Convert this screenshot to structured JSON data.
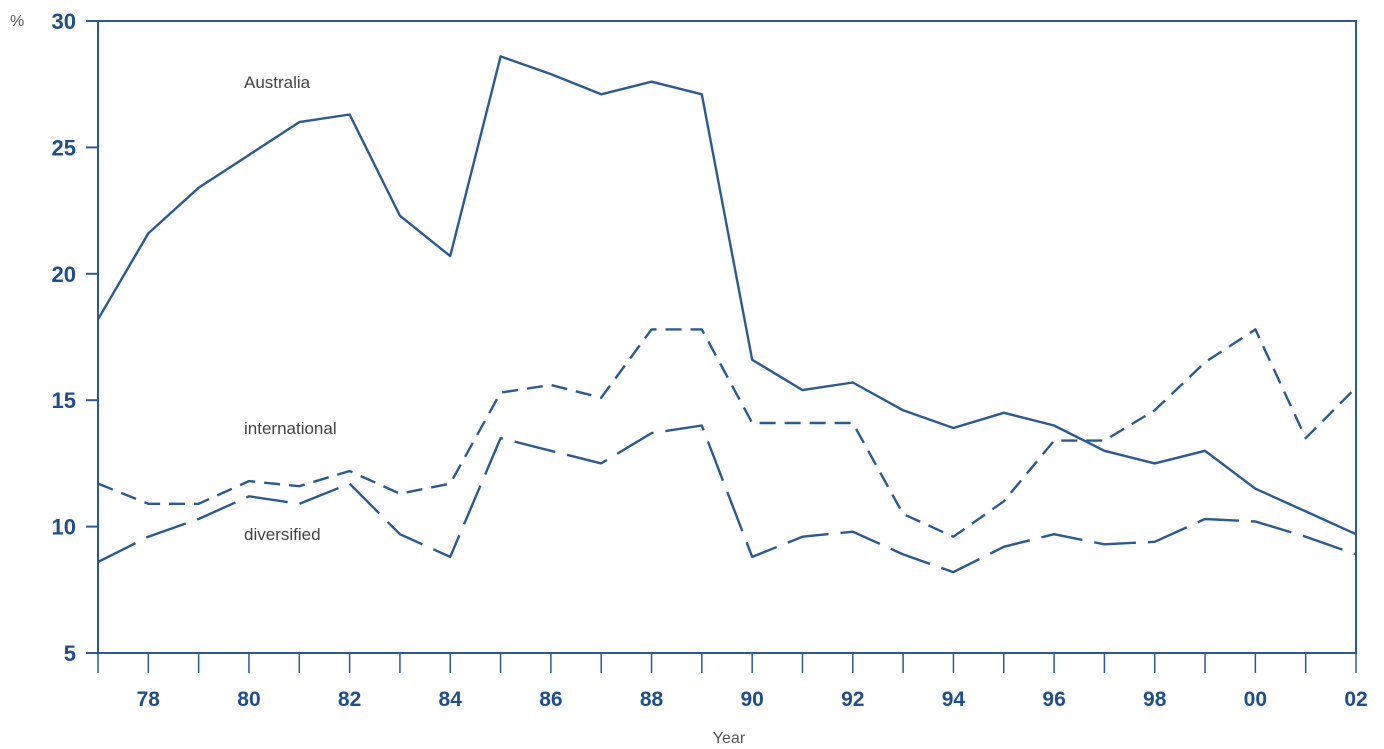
{
  "chart_data": {
    "type": "line",
    "title": "",
    "xlabel": "Year",
    "ylabel": "%",
    "ylim": [
      5,
      30
    ],
    "yticks": [
      "5",
      "10",
      "15",
      "20",
      "25",
      "30"
    ],
    "x": [
      1977,
      1978,
      1979,
      1980,
      1981,
      1982,
      1983,
      1984,
      1985,
      1986,
      1987,
      1988,
      1989,
      1990,
      1991,
      1992,
      1993,
      1994,
      1995,
      1996,
      1997,
      1998,
      1999,
      2000,
      2001,
      2002
    ],
    "xtick_labels": [
      "78",
      "80",
      "82",
      "84",
      "86",
      "88",
      "90",
      "92",
      "94",
      "96",
      "98",
      "00",
      "02"
    ],
    "series": [
      {
        "name": "Australia",
        "style": "solid",
        "values": [
          18.2,
          21.6,
          23.4,
          24.7,
          26.0,
          26.3,
          22.3,
          20.7,
          28.6,
          27.9,
          27.1,
          27.6,
          27.1,
          16.6,
          15.4,
          15.7,
          14.6,
          13.9,
          14.5,
          14.0,
          13.0,
          12.5,
          13.0,
          11.5,
          10.6,
          9.7
        ]
      },
      {
        "name": "international",
        "style": "short-dash",
        "values": [
          11.7,
          10.9,
          10.9,
          11.8,
          11.6,
          12.2,
          11.3,
          11.7,
          15.3,
          15.6,
          15.1,
          17.8,
          17.8,
          14.1,
          14.1,
          14.1,
          10.5,
          9.6,
          11.0,
          13.4,
          13.4,
          14.6,
          16.5,
          17.8,
          13.5,
          15.5
        ]
      },
      {
        "name": "diversified",
        "style": "long-dash",
        "values": [
          8.6,
          9.6,
          10.3,
          11.2,
          10.9,
          11.7,
          9.7,
          8.8,
          13.5,
          13.0,
          12.5,
          13.7,
          14.0,
          8.8,
          9.6,
          9.8,
          8.9,
          8.2,
          9.2,
          9.7,
          9.3,
          9.4,
          10.3,
          10.2,
          9.6,
          8.9
        ]
      }
    ],
    "grid": false,
    "legend": "inline labels"
  },
  "colors": {
    "line": "#2a5a8e",
    "axis": "#2a5a8e",
    "tick_text": "#1f4e8c"
  }
}
